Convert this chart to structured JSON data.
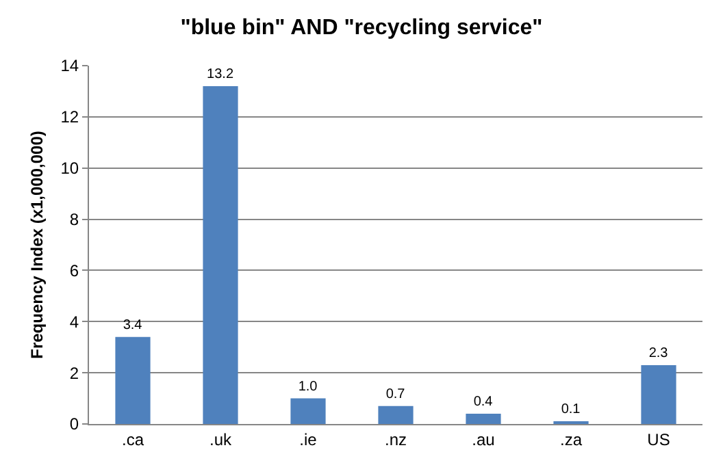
{
  "chart_data": {
    "type": "bar",
    "title": "\"blue bin\" AND \"recycling service\"",
    "ylabel": "Frequency Index (x1,000,000)",
    "categories": [
      ".ca",
      ".uk",
      ".ie",
      ".nz",
      ".au",
      ".za",
      "US"
    ],
    "values": [
      3.4,
      13.2,
      1.0,
      0.7,
      0.4,
      0.1,
      2.3
    ],
    "value_labels": [
      "3.4",
      "13.2",
      "1.0",
      "0.7",
      "0.4",
      "0.1",
      "2.3"
    ],
    "color": "#4f81bd",
    "ylim": [
      0,
      14
    ],
    "yticks": [
      0,
      2,
      4,
      6,
      8,
      10,
      12,
      14
    ],
    "grid": "y"
  }
}
